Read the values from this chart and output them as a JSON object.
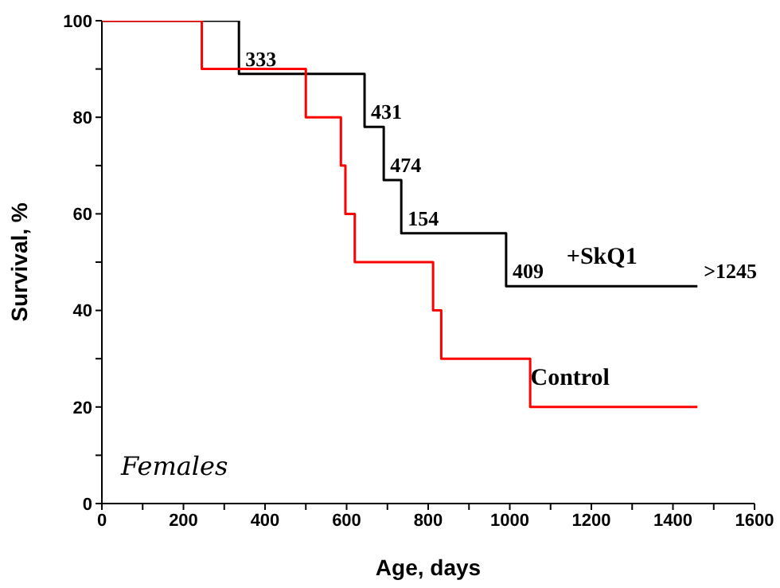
{
  "chart_data": {
    "type": "step",
    "xlabel": "Age, days",
    "ylabel": "Survival, %",
    "series": [
      {
        "name": "+SkQ1",
        "color": "#000000",
        "x": [
          0,
          336,
          644,
          691,
          734,
          991,
          1460
        ],
        "values": [
          100,
          89,
          78,
          67,
          56,
          45,
          45
        ]
      },
      {
        "name": "Control",
        "color": "#ff0000",
        "x": [
          0,
          245,
          500,
          586,
          597,
          620,
          812,
          832,
          1050,
          1460
        ],
        "values": [
          100,
          90,
          80,
          70,
          60,
          50,
          40,
          30,
          20,
          20
        ]
      }
    ],
    "xlim": [
      0,
      1600
    ],
    "xticks": [
      0,
      {
        "value": 100,
        "label": null
      },
      200,
      {
        "value": 300,
        "label": null
      },
      400,
      {
        "value": 500,
        "label": null
      },
      600,
      {
        "value": 700,
        "label": null
      },
      800,
      {
        "value": 900,
        "label": null
      },
      1000,
      {
        "value": 1100,
        "label": null
      },
      1200,
      {
        "value": 1300,
        "label": null
      },
      1400,
      {
        "value": 1500,
        "label": null
      },
      1600
    ],
    "ylim": [
      0,
      100
    ],
    "yticks": [
      0,
      {
        "value": 10,
        "label": null
      },
      20,
      {
        "value": 30,
        "label": null
      },
      40,
      {
        "value": 50,
        "label": null
      },
      60,
      {
        "value": 70,
        "label": null
      },
      80,
      {
        "value": 90,
        "label": null
      },
      100
    ],
    "grid": false,
    "legend": false,
    "marker": "none",
    "line_style": "solid",
    "annotations": [
      {
        "text": "333",
        "x": 336,
        "y": 89
      },
      {
        "text": "431",
        "x": 644,
        "y": 78
      },
      {
        "text": "474",
        "x": 691,
        "y": 67
      },
      {
        "text": "154",
        "x": 734,
        "y": 56
      },
      {
        "text": "409",
        "x": 991,
        "y": 45
      },
      {
        "text": ">1245",
        "x": 1460,
        "y": 45
      },
      "Females"
    ]
  }
}
